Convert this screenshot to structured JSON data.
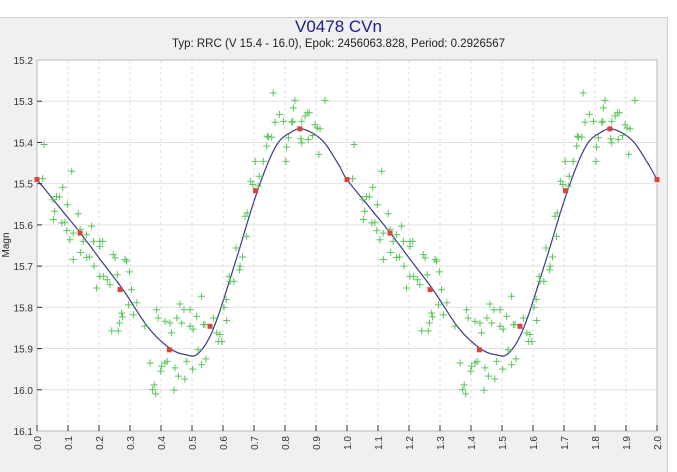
{
  "chart_data": {
    "type": "scatter",
    "title": "V0478 CVn",
    "subtitle": "Typ: RRC (V 15.4 - 16.0), Epok: 2456063.828, Period: 0.2926567",
    "xlabel": "",
    "ylabel": "Magn",
    "xlim": [
      0.0,
      2.0
    ],
    "ylim": [
      15.2,
      16.1
    ],
    "y_inverted": true,
    "grid": true,
    "x_ticks": [
      "0.0",
      "0.1",
      "0.2",
      "0.3",
      "0.4",
      "0.5",
      "0.6",
      "0.7",
      "0.8",
      "0.9",
      "1.0",
      "1.1",
      "1.2",
      "1.3",
      "1.4",
      "1.5",
      "1.6",
      "1.7",
      "1.8",
      "1.9",
      "2.0"
    ],
    "y_ticks": [
      "15.2",
      "15.3",
      "15.4",
      "15.5",
      "15.6",
      "15.7",
      "15.8",
      "15.9",
      "16.0",
      "16.1"
    ],
    "colors": {
      "points": "#5cc65c",
      "curve": "#3a3a8c",
      "markers": "#d9443a",
      "title": "#1c1c8a"
    },
    "phase_repeat": 1.0,
    "observations": [
      [
        0.023,
        15.405
      ],
      [
        0.018,
        15.488
      ],
      [
        0.051,
        15.539
      ],
      [
        0.063,
        15.531
      ],
      [
        0.072,
        15.532
      ],
      [
        0.083,
        15.509
      ],
      [
        0.057,
        15.567
      ],
      [
        0.053,
        15.587
      ],
      [
        0.08,
        15.595
      ],
      [
        0.09,
        15.594
      ],
      [
        0.098,
        15.551
      ],
      [
        0.112,
        15.47
      ],
      [
        0.096,
        15.614
      ],
      [
        0.106,
        15.636
      ],
      [
        0.117,
        15.62
      ],
      [
        0.133,
        15.573
      ],
      [
        0.139,
        15.611
      ],
      [
        0.149,
        15.64
      ],
      [
        0.16,
        15.624
      ],
      [
        0.176,
        15.603
      ],
      [
        0.141,
        15.667
      ],
      [
        0.117,
        15.684
      ],
      [
        0.16,
        15.679
      ],
      [
        0.169,
        15.678
      ],
      [
        0.182,
        15.64
      ],
      [
        0.203,
        15.64
      ],
      [
        0.212,
        15.64
      ],
      [
        0.203,
        15.652
      ],
      [
        0.184,
        15.7
      ],
      [
        0.203,
        15.725
      ],
      [
        0.214,
        15.725
      ],
      [
        0.192,
        15.753
      ],
      [
        0.227,
        15.733
      ],
      [
        0.235,
        15.745
      ],
      [
        0.246,
        15.672
      ],
      [
        0.252,
        15.68
      ],
      [
        0.259,
        15.721
      ],
      [
        0.284,
        15.684
      ],
      [
        0.289,
        15.688
      ],
      [
        0.298,
        15.714
      ],
      [
        0.305,
        15.757
      ],
      [
        0.295,
        15.794
      ],
      [
        0.322,
        15.789
      ],
      [
        0.311,
        15.818
      ],
      [
        0.273,
        15.814
      ],
      [
        0.276,
        15.823
      ],
      [
        0.266,
        15.838
      ],
      [
        0.241,
        15.857
      ],
      [
        0.262,
        15.857
      ],
      [
        0.348,
        15.846
      ],
      [
        0.386,
        15.806
      ],
      [
        0.391,
        15.826
      ],
      [
        0.413,
        15.834
      ],
      [
        0.429,
        15.838
      ],
      [
        0.434,
        15.862
      ],
      [
        0.451,
        15.826
      ],
      [
        0.461,
        15.792
      ],
      [
        0.467,
        15.838
      ],
      [
        0.474,
        15.806
      ],
      [
        0.494,
        15.806
      ],
      [
        0.494,
        15.846
      ],
      [
        0.504,
        15.853
      ],
      [
        0.515,
        15.822
      ],
      [
        0.531,
        15.773
      ],
      [
        0.537,
        15.842
      ],
      [
        0.542,
        15.842
      ],
      [
        0.569,
        15.826
      ],
      [
        0.58,
        15.862
      ],
      [
        0.59,
        15.866
      ],
      [
        0.585,
        15.883
      ],
      [
        0.596,
        15.883
      ],
      [
        0.61,
        15.781
      ],
      [
        0.603,
        15.8
      ],
      [
        0.612,
        15.832
      ],
      [
        0.52,
        15.903
      ],
      [
        0.365,
        15.935
      ],
      [
        0.402,
        15.943
      ],
      [
        0.399,
        15.955
      ],
      [
        0.413,
        15.935
      ],
      [
        0.42,
        15.931
      ],
      [
        0.445,
        15.947
      ],
      [
        0.456,
        15.967
      ],
      [
        0.477,
        15.974
      ],
      [
        0.483,
        15.931
      ],
      [
        0.502,
        15.95
      ],
      [
        0.531,
        15.939
      ],
      [
        0.545,
        15.925
      ],
      [
        0.378,
        15.988
      ],
      [
        0.373,
        16.0
      ],
      [
        0.383,
        16.01
      ],
      [
        0.442,
        16.001
      ],
      [
        0.623,
        15.737
      ],
      [
        0.635,
        15.737
      ],
      [
        0.62,
        15.725
      ],
      [
        0.653,
        15.709
      ],
      [
        0.655,
        15.7
      ],
      [
        0.663,
        15.678
      ],
      [
        0.642,
        15.656
      ],
      [
        0.676,
        15.628
      ],
      [
        0.671,
        15.579
      ],
      [
        0.678,
        15.571
      ],
      [
        0.689,
        15.494
      ],
      [
        0.696,
        15.502
      ],
      [
        0.714,
        15.506
      ],
      [
        0.717,
        15.482
      ],
      [
        0.704,
        15.446
      ],
      [
        0.73,
        15.446
      ],
      [
        0.741,
        15.409
      ],
      [
        0.743,
        15.385
      ],
      [
        0.747,
        15.387
      ],
      [
        0.757,
        15.387
      ],
      [
        0.768,
        15.351
      ],
      [
        0.782,
        15.332
      ],
      [
        0.795,
        15.349
      ],
      [
        0.805,
        15.411
      ],
      [
        0.803,
        15.446
      ],
      [
        0.811,
        15.389
      ],
      [
        0.822,
        15.351
      ],
      [
        0.825,
        15.349
      ],
      [
        0.827,
        15.316
      ],
      [
        0.832,
        15.298
      ],
      [
        0.854,
        15.349
      ],
      [
        0.851,
        15.391
      ],
      [
        0.854,
        15.401
      ],
      [
        0.865,
        15.336
      ],
      [
        0.872,
        15.328
      ],
      [
        0.878,
        15.328
      ],
      [
        0.875,
        15.393
      ],
      [
        0.889,
        15.383
      ],
      [
        0.897,
        15.357
      ],
      [
        0.904,
        15.365
      ],
      [
        0.913,
        15.367
      ],
      [
        0.909,
        15.429
      ],
      [
        0.929,
        15.298
      ],
      [
        0.762,
        15.28
      ]
    ],
    "fit_curve": [
      [
        0.0,
        15.49
      ],
      [
        0.07,
        15.555
      ],
      [
        0.14,
        15.62
      ],
      [
        0.21,
        15.69
      ],
      [
        0.28,
        15.76
      ],
      [
        0.36,
        15.85
      ],
      [
        0.43,
        15.9
      ],
      [
        0.48,
        15.915
      ],
      [
        0.52,
        15.912
      ],
      [
        0.57,
        15.85
      ],
      [
        0.64,
        15.69
      ],
      [
        0.71,
        15.52
      ],
      [
        0.77,
        15.41
      ],
      [
        0.82,
        15.375
      ],
      [
        0.86,
        15.368
      ],
      [
        0.92,
        15.395
      ],
      [
        0.97,
        15.45
      ],
      [
        1.0,
        15.49
      ]
    ],
    "fit_markers": [
      [
        0.0,
        15.49
      ],
      [
        0.139,
        15.62
      ],
      [
        0.268,
        15.757
      ],
      [
        0.427,
        15.903
      ],
      [
        0.558,
        15.846
      ],
      [
        0.705,
        15.517
      ],
      [
        0.848,
        15.367
      ]
    ]
  }
}
